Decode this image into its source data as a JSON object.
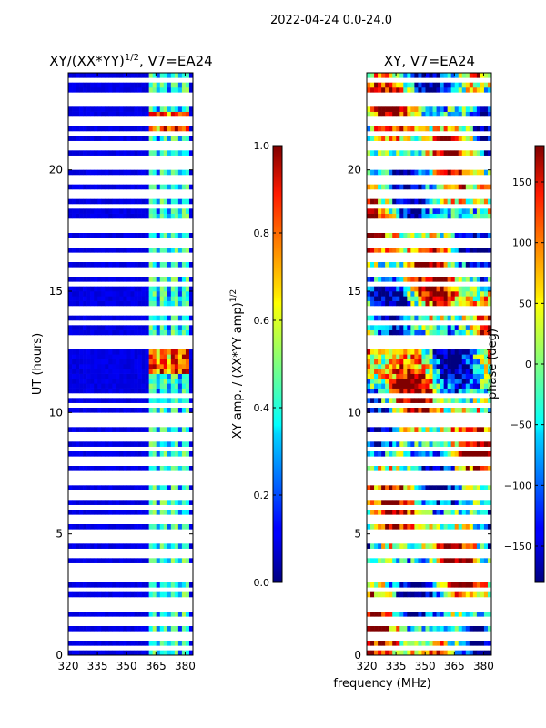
{
  "suptitle": "2022-04-24 0.0-24.0",
  "shared_xlabel": "frequency (MHz)",
  "chart_data": [
    {
      "type": "heatmap",
      "title_main": "XY/(XX*YY)",
      "title_sup": "1/2",
      "title_tail": ", V7=EA24",
      "ylabel": "UT (hours)",
      "xlim": [
        320,
        384
      ],
      "ylim": [
        0,
        24
      ],
      "xticks": [
        320,
        335,
        350,
        365,
        380
      ],
      "yticks": [
        0,
        5,
        10,
        15,
        20
      ],
      "colorbar": {
        "label_main": "XY amp. / (XX*YY amp)",
        "label_sup": "1/2",
        "min": 0.0,
        "max": 1.0,
        "ticks": [
          0.0,
          0.2,
          0.4,
          0.6,
          0.8,
          1.0
        ],
        "tick_labels": [
          "0.0",
          "0.2",
          "0.4",
          "0.6",
          "0.8",
          "1.0"
        ]
      }
    },
    {
      "type": "heatmap",
      "title": "XY, V7=EA24",
      "xlim": [
        320,
        384
      ],
      "ylim": [
        0,
        24
      ],
      "xticks": [
        320,
        335,
        350,
        365,
        380
      ],
      "yticks": [
        0,
        5,
        10,
        15,
        20
      ],
      "colorbar": {
        "label": "phase (deg)",
        "min": -180,
        "max": 180,
        "ticks": [
          -150,
          -100,
          -50,
          0,
          50,
          100,
          150
        ],
        "tick_labels": [
          "−150",
          "−100",
          "−50",
          "0",
          "50",
          "100",
          "150"
        ]
      }
    }
  ]
}
